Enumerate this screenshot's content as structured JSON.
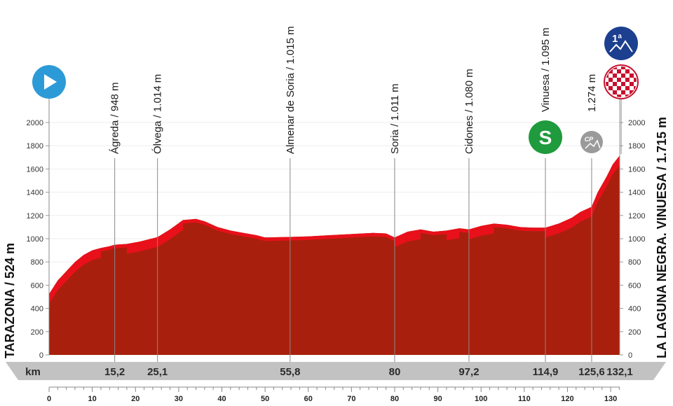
{
  "chart_data": {
    "type": "area",
    "title": "",
    "x_unit_label": "km",
    "xlim": [
      0,
      132.1
    ],
    "ylim": [
      0,
      2000
    ],
    "y_ticks": [
      0,
      200,
      400,
      600,
      800,
      1000,
      1200,
      1400,
      1600,
      1800,
      2000
    ],
    "x_ticks": [
      0,
      10,
      20,
      30,
      40,
      50,
      60,
      70,
      80,
      90,
      100,
      110,
      120,
      130
    ],
    "series": [
      {
        "x": [
          0,
          2,
          4,
          6,
          8,
          10,
          12,
          14,
          15.2,
          18,
          21,
          25.1,
          28,
          31,
          34,
          36,
          39,
          42,
          45,
          48,
          50,
          52,
          55.8,
          60,
          65,
          70,
          75,
          78,
          80,
          83,
          86,
          89,
          92,
          95,
          97.2,
          100,
          103,
          106,
          109,
          112,
          114.9,
          118,
          121,
          123,
          125.6,
          127,
          129,
          130.5,
          132.1
        ],
        "y": [
          524,
          640,
          720,
          800,
          860,
          900,
          920,
          935,
          948,
          955,
          975,
          1014,
          1080,
          1160,
          1170,
          1150,
          1100,
          1070,
          1050,
          1030,
          1010,
          1012,
          1015,
          1020,
          1030,
          1040,
          1050,
          1045,
          1011,
          1060,
          1080,
          1060,
          1070,
          1090,
          1080,
          1110,
          1130,
          1120,
          1100,
          1095,
          1095,
          1130,
          1180,
          1230,
          1274,
          1400,
          1530,
          1640,
          1715
        ]
      }
    ],
    "colors": {
      "profile": "#a8200d",
      "climb_highlight": "#e8101a",
      "band": "#c2c2c2"
    }
  },
  "start": {
    "name": "TARAZONA / 524 m",
    "icon": "play-start-icon",
    "color": "#2d9ad8"
  },
  "finish": {
    "name": "LA LAGUNA NEGRA. VINUESA / 1.715 m",
    "icon": "checkered-finish-icon",
    "category_badge": "1ª",
    "category_color": "#1d3f8f"
  },
  "waypoints": [
    {
      "km": 15.2,
      "km_label": "15,2",
      "label": "Ágreda / 948 m"
    },
    {
      "km": 25.1,
      "km_label": "25,1",
      "label": "Ólvega / 1.014 m"
    },
    {
      "km": 55.8,
      "km_label": "55,8",
      "label": "Almenar de Soria / 1.015 m"
    },
    {
      "km": 80,
      "km_label": "80",
      "label": "Soria / 1.011 m"
    },
    {
      "km": 97.2,
      "km_label": "97,2",
      "label": "Cidones / 1.080 m"
    },
    {
      "km": 114.9,
      "km_label": "114,9",
      "label": "Vinuesa / 1.095 m",
      "badge": "S",
      "badge_color": "#1f9a3c",
      "badge_icon": "sprint-icon"
    },
    {
      "km": 125.6,
      "km_label": "125,6",
      "label": "1.274 m",
      "badge": "CP",
      "badge_color": "#9a9a9a",
      "badge_icon": "checkpoint-icon"
    },
    {
      "km": 132.1,
      "km_label": "132,1",
      "label": ""
    }
  ]
}
